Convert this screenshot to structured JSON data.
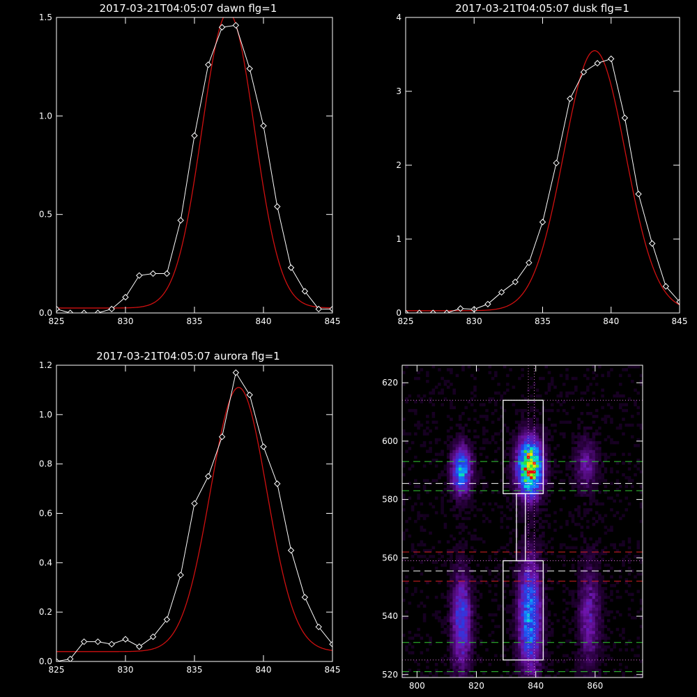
{
  "colors": {
    "background": "#000000",
    "axes": "#ffffff",
    "measured": "#ffffff",
    "fit": "#d01010",
    "green_dash": "#33cc33",
    "red_dash": "#dd2222",
    "white_dash": "#ffffff",
    "dotted": "#dd77dd"
  },
  "chart_data": [
    {
      "type": "line",
      "title": "2017-03-21T04:05:07 dawn flg=1",
      "xlabel": "",
      "ylabel": "",
      "xlim": [
        825,
        845
      ],
      "ylim": [
        0,
        1.5
      ],
      "xticks": [
        "825",
        "830",
        "835",
        "840",
        "845"
      ],
      "xtick_values": [
        825,
        830,
        835,
        840,
        845
      ],
      "yticks": [
        "0.0",
        "0.5",
        "1.0",
        "1.5"
      ],
      "ytick_values": [
        0,
        0.5,
        1.0,
        1.5
      ],
      "series": [
        {
          "style": "white line with diamond markers",
          "x": [
            825,
            826,
            827,
            828,
            829,
            830,
            831,
            832,
            833,
            834,
            835,
            836,
            837,
            838,
            839,
            840,
            841,
            842,
            843,
            844,
            845
          ],
          "y": [
            0.02,
            0.0,
            0.0,
            0.0,
            0.02,
            0.08,
            0.19,
            0.2,
            0.2,
            0.47,
            0.9,
            1.26,
            1.45,
            1.46,
            1.24,
            0.95,
            0.54,
            0.23,
            0.11,
            0.02,
            0.02
          ]
        },
        {
          "style": "red gaussian fit",
          "model": "gaussian",
          "offset": 0.025,
          "amplitude": 1.5,
          "center": 837.45,
          "sigma": 1.9
        }
      ]
    },
    {
      "type": "line",
      "title": "2017-03-21T04:05:07 dusk flg=1",
      "xlabel": "",
      "ylabel": "",
      "xlim": [
        825,
        845
      ],
      "ylim": [
        0,
        4
      ],
      "xticks": [
        "825",
        "830",
        "835",
        "840",
        "845"
      ],
      "xtick_values": [
        825,
        830,
        835,
        840,
        845
      ],
      "yticks": [
        "0",
        "1",
        "2",
        "3",
        "4"
      ],
      "ytick_values": [
        0,
        1,
        2,
        3,
        4
      ],
      "series": [
        {
          "style": "white line with diamond markers",
          "x": [
            825,
            826,
            827,
            828,
            829,
            830,
            831,
            832,
            833,
            834,
            835,
            836,
            837,
            838,
            839,
            840,
            841,
            842,
            843,
            844,
            845
          ],
          "y": [
            0.0,
            0.0,
            0.0,
            0.0,
            0.06,
            0.05,
            0.12,
            0.28,
            0.42,
            0.68,
            1.23,
            2.03,
            2.9,
            3.26,
            3.38,
            3.44,
            2.64,
            1.61,
            0.94,
            0.36,
            0.15
          ]
        },
        {
          "style": "red gaussian fit",
          "model": "gaussian",
          "offset": 0.03,
          "amplitude": 3.52,
          "center": 838.8,
          "sigma": 2.25
        }
      ]
    },
    {
      "type": "line",
      "title": "2017-03-21T04:05:07 aurora flg=1",
      "xlabel": "",
      "ylabel": "",
      "xlim": [
        825,
        845
      ],
      "ylim": [
        0,
        1.2
      ],
      "xticks": [
        "825",
        "830",
        "835",
        "840",
        "845"
      ],
      "xtick_values": [
        825,
        830,
        835,
        840,
        845
      ],
      "yticks": [
        "0.0",
        "0.2",
        "0.4",
        "0.6",
        "0.8",
        "1.0",
        "1.2"
      ],
      "ytick_values": [
        0,
        0.2,
        0.4,
        0.6,
        0.8,
        1.0,
        1.2
      ],
      "series": [
        {
          "style": "white line with diamond markers",
          "x": [
            825,
            826,
            827,
            828,
            829,
            830,
            831,
            832,
            833,
            834,
            835,
            836,
            837,
            838,
            839,
            840,
            841,
            842,
            843,
            844,
            845
          ],
          "y": [
            0.0,
            0.01,
            0.08,
            0.08,
            0.07,
            0.09,
            0.06,
            0.1,
            0.17,
            0.35,
            0.64,
            0.75,
            0.91,
            1.17,
            1.08,
            0.87,
            0.72,
            0.45,
            0.26,
            0.14,
            0.07
          ]
        },
        {
          "style": "red gaussian fit",
          "model": "gaussian",
          "offset": 0.04,
          "amplitude": 1.07,
          "center": 838.2,
          "sigma": 2.05
        }
      ]
    },
    {
      "type": "heatmap",
      "title": "",
      "xlabel": "",
      "ylabel": "",
      "xlim": [
        795,
        876
      ],
      "ylim": [
        519,
        626
      ],
      "xticks": [
        "800",
        "820",
        "840",
        "860"
      ],
      "xtick_values": [
        800,
        820,
        840,
        860
      ],
      "yticks": [
        "520",
        "540",
        "560",
        "580",
        "600",
        "620"
      ],
      "ytick_values": [
        520,
        540,
        560,
        580,
        600,
        620
      ],
      "colormap": "black-purple-blue-cyan-green-yellow-red",
      "blobs": [
        {
          "x": 815,
          "y": 590,
          "sx": 2.2,
          "sy": 5.5,
          "amp": 0.55
        },
        {
          "x": 838,
          "y": 591,
          "sx": 2.8,
          "sy": 6.5,
          "amp": 0.95
        },
        {
          "x": 857,
          "y": 592,
          "sx": 2.5,
          "sy": 6.0,
          "amp": 0.2
        },
        {
          "x": 815,
          "y": 538,
          "sx": 2.2,
          "sy": 11.0,
          "amp": 0.38
        },
        {
          "x": 838,
          "y": 540,
          "sx": 2.6,
          "sy": 13.0,
          "amp": 0.5
        },
        {
          "x": 858,
          "y": 540,
          "sx": 2.5,
          "sy": 12.0,
          "amp": 0.22
        }
      ],
      "boxes": [
        {
          "x0": 829,
          "x1": 842.5,
          "y0": 582,
          "y1": 614
        },
        {
          "x0": 833.5,
          "x1": 836.5,
          "y0": 559,
          "y1": 582
        },
        {
          "x0": 829,
          "x1": 842.5,
          "y0": 525,
          "y1": 559
        }
      ],
      "hlines": [
        {
          "y": 614,
          "color": "dotted"
        },
        {
          "y": 593,
          "color": "green_dash"
        },
        {
          "y": 585.5,
          "color": "white_dash"
        },
        {
          "y": 583,
          "color": "green_dash"
        },
        {
          "y": 562,
          "color": "red_dash"
        },
        {
          "y": 559,
          "color": "dotted"
        },
        {
          "y": 555.5,
          "color": "white_dash"
        },
        {
          "y": 552,
          "color": "red_dash"
        },
        {
          "y": 531,
          "color": "green_dash"
        },
        {
          "y": 525,
          "color": "dotted"
        },
        {
          "y": 521,
          "color": "green_dash"
        }
      ],
      "vlines": [
        {
          "x": 837.5,
          "color": "dotted"
        },
        {
          "x": 839.5,
          "color": "dotted"
        }
      ]
    }
  ]
}
